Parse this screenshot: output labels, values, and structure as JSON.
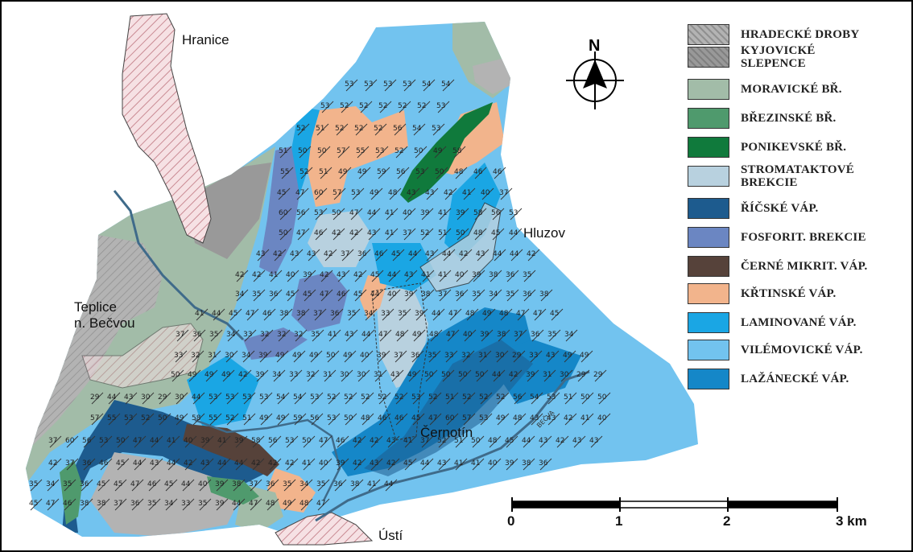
{
  "legend": {
    "items": [
      {
        "label": "HRADECKÉ DROBY",
        "color": "#b3b3b3",
        "icon": "hatched-dark"
      },
      {
        "label": "KYJOVICKÉ\nSLEPENCE",
        "color": "#999999",
        "icon": "hatched-dark"
      },
      {
        "label": "MORAVICKÉ BŘ.",
        "color": "#a2bca8",
        "icon": "solid"
      },
      {
        "label": "BŘEZINSKÉ BŘ.",
        "color": "#4f9a6d",
        "icon": "solid"
      },
      {
        "label": "PONIKEVSKÉ BŘ.",
        "color": "#107a3c",
        "icon": "solid"
      },
      {
        "label": "STROMATAKTOVÉ\nBREKCIE",
        "color": "#b8d1df",
        "icon": "solid"
      },
      {
        "label": "ŘÍČSKÉ VÁP.",
        "color": "#1d5b8e",
        "icon": "solid"
      },
      {
        "label": "FOSFORIT. BREKCIE",
        "color": "#6b86c2",
        "icon": "solid"
      },
      {
        "label": "ČERNÉ MIKRIT. VÁP.",
        "color": "#56423a",
        "icon": "solid"
      },
      {
        "label": "KŘTINSKÉ VÁP.",
        "color": "#f2b48c",
        "icon": "solid"
      },
      {
        "label": "LAMINOVANÉ VÁP.",
        "color": "#1aa6e4",
        "icon": "solid"
      },
      {
        "label": "VILÉMOVICKÉ VÁP.",
        "color": "#72c3ef",
        "icon": "solid"
      },
      {
        "label": "LAŽÁNECKÉ VÁP.",
        "color": "#1587c8",
        "icon": "solid"
      }
    ]
  },
  "places": {
    "hranice": "Hranice",
    "hluzov": "Hluzov",
    "teplice_line1": "Teplice",
    "teplice_line2": "n. Bečvou",
    "cernotin": "Černotín",
    "usti": "Ústí"
  },
  "river_label": "BEČVA",
  "north": {
    "letter": "N",
    "icon": "north-arrow-icon"
  },
  "scale_bar": {
    "labels": [
      "0",
      "1",
      "2",
      "3 km"
    ],
    "segments": 3,
    "unit": "km"
  },
  "dip_values": [
    "53",
    "53",
    "53",
    "53",
    "54",
    "54",
    "53",
    "52",
    "52",
    "52",
    "52",
    "52",
    "53",
    "52",
    "51",
    "52",
    "52",
    "52",
    "56",
    "54",
    "53",
    "51",
    "50",
    "50",
    "57",
    "55",
    "53",
    "52",
    "50",
    "49",
    "58",
    "55",
    "52",
    "51",
    "49",
    "49",
    "59",
    "56",
    "53",
    "50",
    "48",
    "46",
    "46",
    "45",
    "47",
    "60",
    "57",
    "53",
    "49",
    "48",
    "43",
    "43",
    "42",
    "41",
    "40",
    "37",
    "60",
    "56",
    "53",
    "50",
    "47",
    "44",
    "41",
    "40",
    "39",
    "41",
    "39",
    "58",
    "56",
    "53",
    "50",
    "47",
    "46",
    "42",
    "42",
    "43",
    "41",
    "37",
    "52",
    "51",
    "50",
    "48",
    "45",
    "44",
    "43",
    "42",
    "43",
    "43",
    "42",
    "37",
    "36",
    "46",
    "45",
    "44",
    "43",
    "44",
    "42",
    "43",
    "44",
    "44",
    "42",
    "42",
    "42",
    "41",
    "40",
    "39",
    "42",
    "43",
    "42",
    "45",
    "44",
    "43",
    "41",
    "41",
    "40",
    "39",
    "38",
    "36",
    "35",
    "34",
    "35",
    "36",
    "45",
    "45",
    "47",
    "46",
    "45",
    "44",
    "40",
    "39",
    "38",
    "37",
    "36",
    "35",
    "34",
    "35",
    "36",
    "38",
    "41",
    "44",
    "45",
    "47",
    "46",
    "38",
    "38",
    "37",
    "36",
    "35",
    "34",
    "33",
    "35",
    "39",
    "44",
    "47",
    "48",
    "49",
    "48",
    "47",
    "47",
    "45",
    "37",
    "36",
    "35",
    "34",
    "33",
    "32",
    "32",
    "32",
    "35",
    "41",
    "43",
    "44",
    "47",
    "48",
    "49",
    "48",
    "47",
    "40",
    "39",
    "38",
    "37",
    "36",
    "35",
    "34",
    "33",
    "32",
    "31",
    "30",
    "34",
    "39",
    "49",
    "49",
    "49",
    "50",
    "49",
    "40",
    "39",
    "37",
    "36",
    "35",
    "33",
    "32",
    "31",
    "30",
    "29",
    "33",
    "43",
    "49",
    "49",
    "50",
    "49",
    "49",
    "49",
    "42",
    "39",
    "34",
    "33",
    "32",
    "31",
    "30",
    "30",
    "31",
    "43",
    "49",
    "50",
    "50",
    "50",
    "50",
    "44",
    "42",
    "39",
    "31",
    "30",
    "29",
    "29",
    "29",
    "44",
    "43",
    "30",
    "29",
    "30",
    "44"
  ]
}
